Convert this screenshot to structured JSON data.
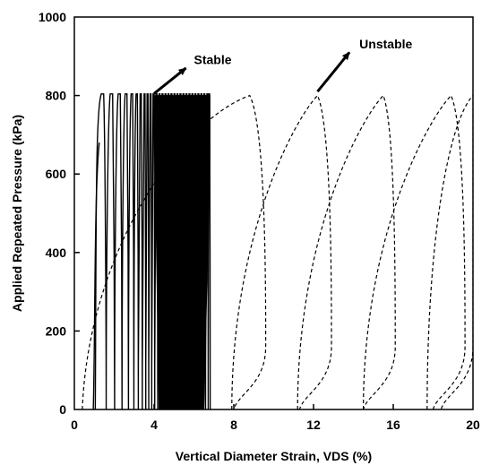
{
  "chart_data": {
    "type": "line",
    "title": "",
    "xlabel": "Vertical Diameter Strain, VDS (%)",
    "ylabel": "Applied Repeated Pressure (kPa)",
    "xlim": [
      0,
      20
    ],
    "ylim": [
      0,
      1000
    ],
    "xticks": [
      "0",
      "4",
      "8",
      "12",
      "16",
      "20"
    ],
    "yticks": [
      "0",
      "200",
      "400",
      "600",
      "800",
      "1000"
    ],
    "grid": false,
    "legend": "none",
    "peak_pressure": 800,
    "series": [
      {
        "style": "solid",
        "first_loop": {
          "start_strain": 1.05,
          "peak_strain": 1.35,
          "end_strain": 1.75
        },
        "loop_peak_strains": [
          1.35,
          1.8,
          2.2,
          2.55,
          2.85,
          3.1,
          3.3,
          3.5,
          3.65,
          3.8,
          3.95,
          4.1,
          4.25,
          4.4,
          4.55,
          4.7,
          4.85,
          5.0,
          5.15,
          5.3,
          5.45,
          5.6,
          5.75,
          5.9,
          6.05,
          6.2,
          6.35,
          6.5,
          6.65,
          6.75
        ],
        "final_strain": 6.8
      },
      {
        "style": "dashed",
        "loops": [
          {
            "start_strain": 0.4,
            "peak_strain": 8.8,
            "end_strain": 9.6
          },
          {
            "start_strain": 7.9,
            "peak_strain": 12.2,
            "end_strain": 12.9
          },
          {
            "start_strain": 11.2,
            "peak_strain": 15.5,
            "end_strain": 16.1
          },
          {
            "start_strain": 14.5,
            "peak_strain": 18.9,
            "end_strain": 19.6
          },
          {
            "start_strain": 17.7,
            "peak_strain": 20.0,
            "end_strain": 20.0
          }
        ]
      }
    ],
    "annotations": [
      {
        "text": "Stable",
        "arrow_from": [
          4.0,
          805
        ],
        "arrow_to": [
          5.6,
          870
        ],
        "label_at": [
          6.0,
          880
        ]
      },
      {
        "text": "Unstable",
        "arrow_from": [
          12.2,
          810
        ],
        "arrow_to": [
          13.8,
          910
        ],
        "label_at": [
          14.3,
          920
        ]
      }
    ]
  }
}
